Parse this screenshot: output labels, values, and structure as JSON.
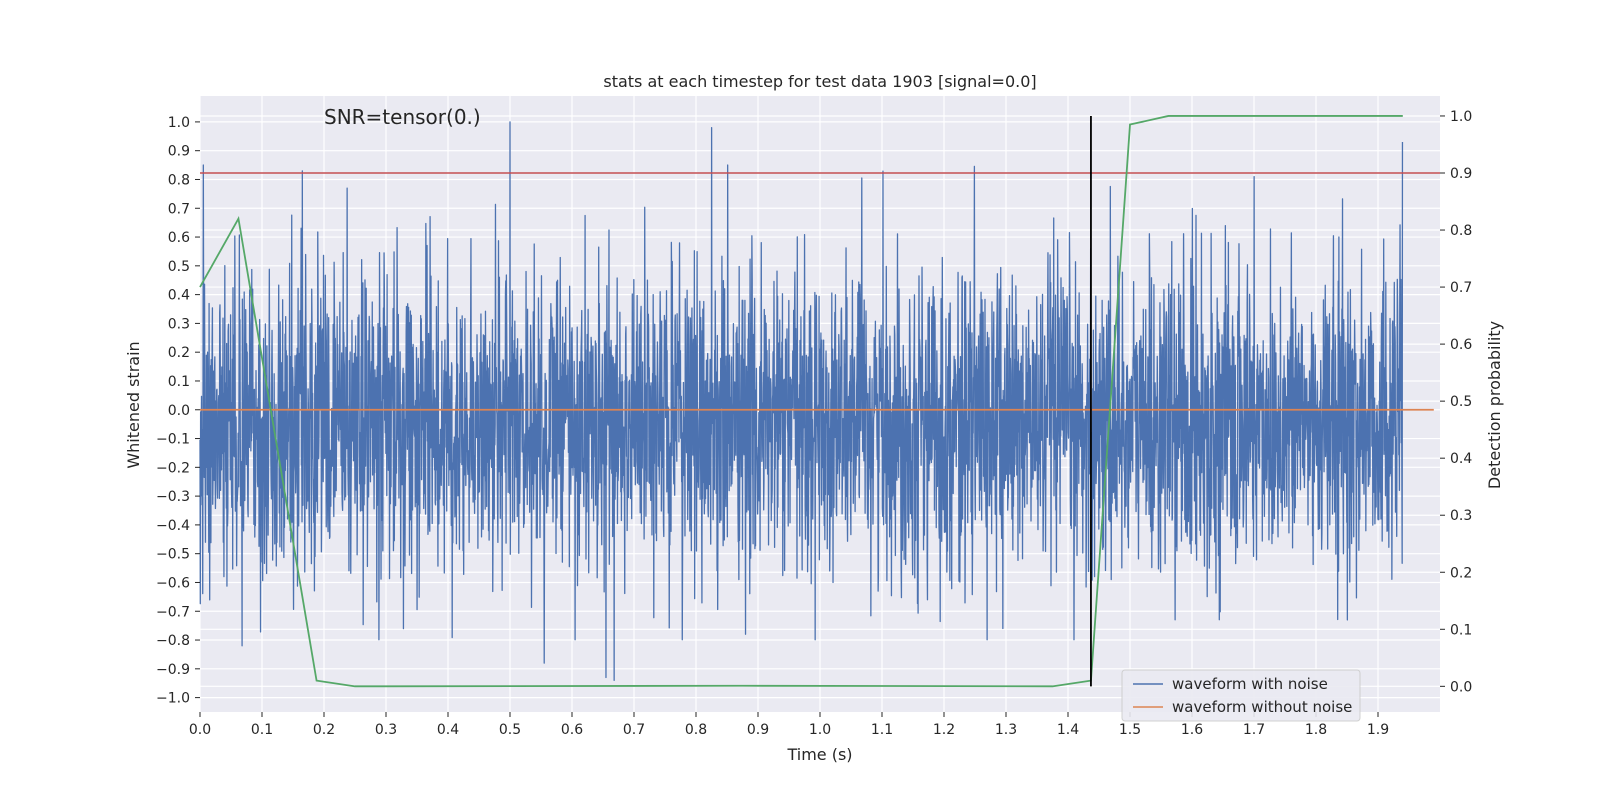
{
  "chart_data": {
    "type": "line",
    "title": "stats at each timestep for test data 1903 [signal=0.0]",
    "xlabel": "Time (s)",
    "ylabel": "Whitened strain",
    "y2label": "Detection probability",
    "annotation": "SNR=tensor(0.)",
    "xlim": [
      0.0,
      2.0
    ],
    "ylim": [
      -1.05,
      1.09
    ],
    "y2lim": [
      -0.045,
      1.035
    ],
    "xticks": [
      "0.0",
      "0.1",
      "0.2",
      "0.3",
      "0.4",
      "0.5",
      "0.6",
      "0.7",
      "0.8",
      "0.9",
      "1.0",
      "1.1",
      "1.2",
      "1.3",
      "1.4",
      "1.5",
      "1.6",
      "1.7",
      "1.8",
      "1.9"
    ],
    "yticks": [
      "1.0",
      "0.9",
      "0.8",
      "0.7",
      "0.6",
      "0.5",
      "0.4",
      "0.3",
      "0.2",
      "0.1",
      "0.0",
      "−0.1",
      "−0.2",
      "−0.3",
      "−0.4",
      "−0.5",
      "−0.6",
      "−0.7",
      "−0.8",
      "−0.9",
      "−1.0"
    ],
    "y2ticks": [
      "1.0",
      "0.9",
      "0.8",
      "0.7",
      "0.6",
      "0.5",
      "0.4",
      "0.3",
      "0.2",
      "0.1",
      "0.0"
    ],
    "grid": true,
    "legend_position": "lower-right",
    "colors": {
      "noise": "#4c72b0",
      "clean": "#dd8452",
      "probability": "#55a868",
      "threshold": "#c44e52",
      "marker": "#000000",
      "background": "#eaeaf2"
    },
    "series": [
      {
        "name": "waveform with noise",
        "axis": "left",
        "sample_rate": 2048,
        "duration": 1.94,
        "amplitude_range": [
          -0.94,
          1.0
        ],
        "peaks": [
          {
            "x": 0.5,
            "y": 1.0
          },
          {
            "x": 0.825,
            "y": 0.98
          },
          {
            "x": 1.94,
            "y": 0.93
          },
          {
            "x": 0.165,
            "y": 0.83
          },
          {
            "x": 1.7,
            "y": 0.81
          },
          {
            "x": 0.655,
            "y": -0.93
          },
          {
            "x": 0.668,
            "y": -0.94
          },
          {
            "x": 0.068,
            "y": -0.82
          },
          {
            "x": 0.555,
            "y": -0.88
          },
          {
            "x": 1.295,
            "y": -0.76
          },
          {
            "x": 0.88,
            "y": -0.78
          }
        ]
      },
      {
        "name": "waveform without noise",
        "axis": "left",
        "x": [
          0.0,
          1.99
        ],
        "y": [
          0.0,
          0.0
        ]
      },
      {
        "axis": "right",
        "x": [
          0.0,
          0.062,
          0.188,
          0.25,
          0.875,
          1.375,
          1.437,
          1.5,
          1.562,
          1.94
        ],
        "y": [
          0.7,
          0.82,
          0.01,
          0.0,
          0.001,
          0.0,
          0.01,
          0.985,
          1.0,
          1.0
        ]
      }
    ],
    "reference_lines": [
      {
        "orientation": "horizontal",
        "axis": "right",
        "y": 0.9
      },
      {
        "orientation": "vertical",
        "x": 1.437,
        "y_range": [
          0.0,
          1.0
        ]
      }
    ]
  }
}
